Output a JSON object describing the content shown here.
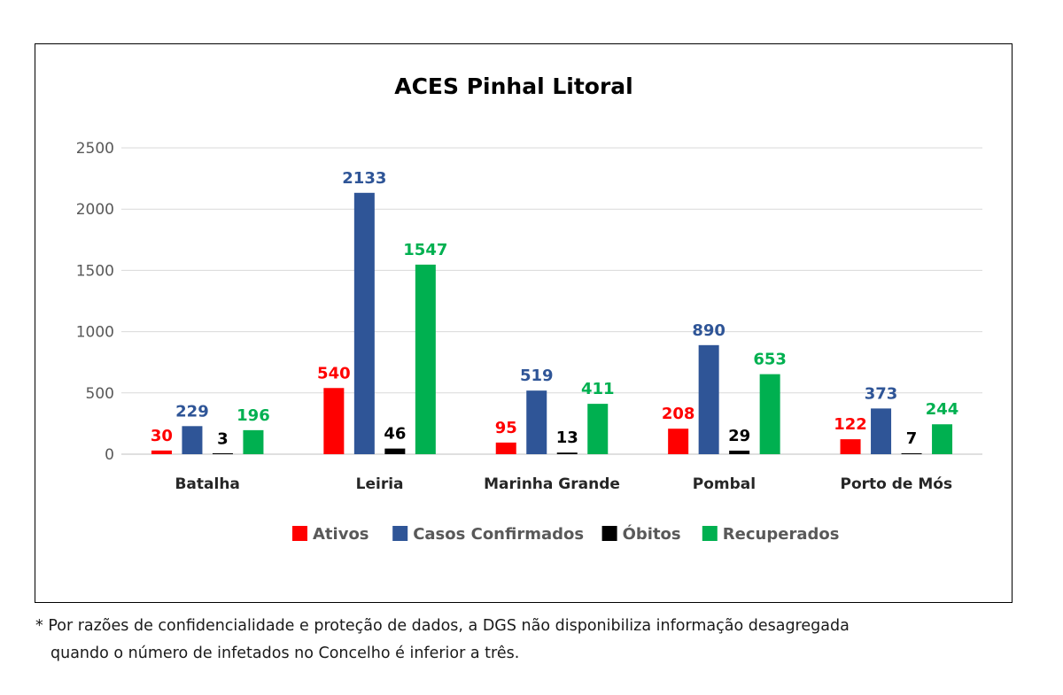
{
  "chart_data": {
    "type": "bar",
    "title": "ACES Pinhal Litoral",
    "categories": [
      "Batalha",
      "Leiria",
      "Marinha Grande",
      "Pombal",
      "Porto de Mós"
    ],
    "series": [
      {
        "name": "Ativos",
        "color": "#ff0000",
        "label_color": "#ff0000",
        "values": [
          30,
          540,
          95,
          208,
          122
        ]
      },
      {
        "name": "Casos Confirmados",
        "color": "#2f5597",
        "label_color": "#2f5597",
        "values": [
          229,
          2133,
          519,
          890,
          373
        ]
      },
      {
        "name": "Óbitos",
        "color": "#000000",
        "label_color": "#000000",
        "values": [
          3,
          46,
          13,
          29,
          7
        ]
      },
      {
        "name": "Recuperados",
        "color": "#00b050",
        "label_color": "#00b050",
        "values": [
          196,
          1547,
          411,
          653,
          244
        ]
      }
    ],
    "ylim": [
      0,
      2500
    ],
    "yticks": [
      0,
      500,
      1000,
      1500,
      2000,
      2500
    ],
    "grid": true,
    "legend": "bottom"
  },
  "footnote": {
    "line1": "* Por razões de confidencialidade e proteção de dados, a DGS não disponibiliza informação desagregada",
    "line2": "quando o número de infetados no Concelho é inferior a três."
  }
}
